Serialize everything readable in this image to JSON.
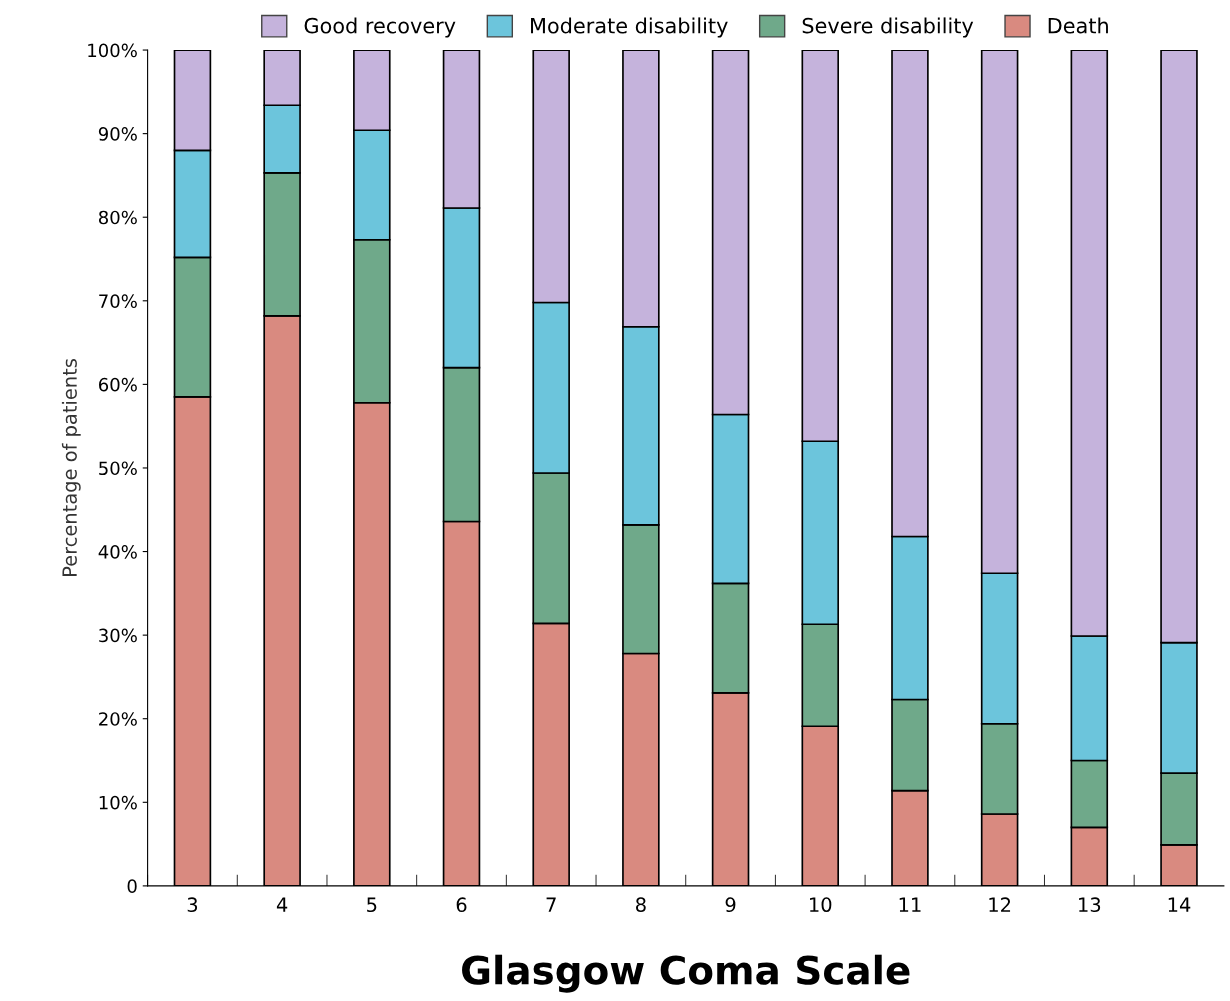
{
  "chart_data": {
    "type": "bar",
    "stacked": true,
    "xlabel": "Glasgow Coma Scale",
    "ylabel": "Percentage of patients",
    "categories": [
      "3",
      "4",
      "5",
      "6",
      "7",
      "8",
      "9",
      "10",
      "11",
      "12",
      "13",
      "14"
    ],
    "series": [
      {
        "name": "Death",
        "color": "#d98a80",
        "values": [
          58.5,
          68.2,
          57.8,
          43.6,
          31.4,
          27.8,
          23.1,
          19.1,
          11.4,
          8.6,
          7.0,
          4.9
        ]
      },
      {
        "name": "Severe disability",
        "color": "#6fa98a",
        "values": [
          16.7,
          17.1,
          19.5,
          18.4,
          18.0,
          15.4,
          13.1,
          12.2,
          10.9,
          10.8,
          8.0,
          8.6
        ]
      },
      {
        "name": "Moderate disability",
        "color": "#6cc5dc",
        "values": [
          12.8,
          8.1,
          13.1,
          19.1,
          20.4,
          23.7,
          20.2,
          21.9,
          19.5,
          18.0,
          14.9,
          15.6
        ]
      },
      {
        "name": "Good recovery",
        "color": "#c5b3dc",
        "values": [
          12.0,
          6.6,
          9.6,
          18.9,
          30.2,
          33.1,
          43.6,
          46.8,
          58.2,
          62.6,
          70.1,
          70.9
        ]
      }
    ],
    "ylim": [
      0,
      100
    ],
    "yticks": [
      0,
      {
        "value": 10,
        "label": "10%"
      },
      {
        "value": 20,
        "label": "20%"
      },
      {
        "value": 30,
        "label": "30%"
      },
      {
        "value": 40,
        "label": "40%"
      },
      {
        "value": 50,
        "label": "50%"
      },
      {
        "value": 60,
        "label": "60%"
      },
      {
        "value": 70,
        "label": "70%"
      },
      {
        "value": 80,
        "label": "80%"
      },
      {
        "value": 90,
        "label": "90%"
      },
      {
        "value": 100,
        "label": "100%"
      }
    ],
    "legend": "top",
    "grid": false
  }
}
